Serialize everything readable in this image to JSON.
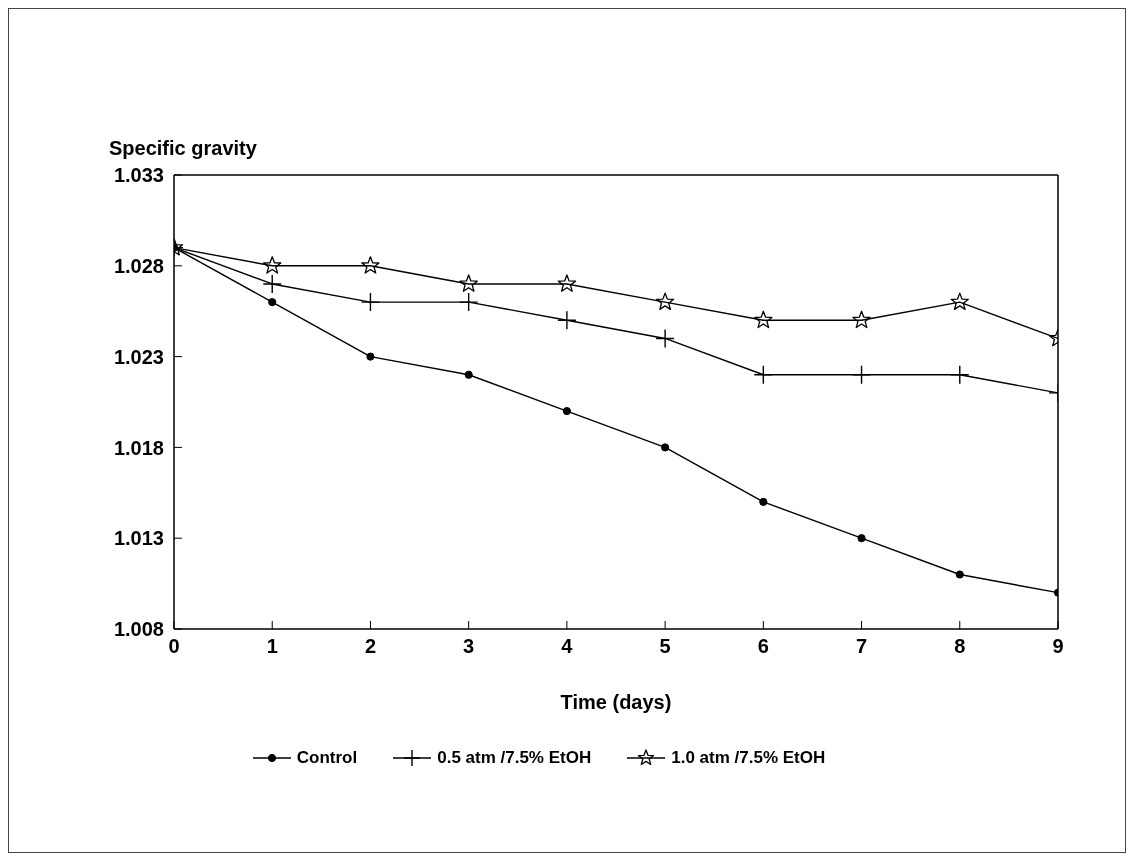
{
  "chart_data": {
    "type": "line",
    "xlabel": "Time (days)",
    "ylabel": "Specific gravity",
    "x": [
      0,
      1,
      2,
      3,
      4,
      5,
      6,
      7,
      8,
      9
    ],
    "series": [
      {
        "name": "Control",
        "color": "#000000",
        "marker": "circle",
        "values": [
          1.029,
          1.026,
          1.023,
          1.022,
          1.02,
          1.018,
          1.015,
          1.013,
          1.011,
          1.01
        ]
      },
      {
        "name": "0.5 atm /7.5% EtOH",
        "color": "#000000",
        "marker": "cross",
        "values": [
          1.029,
          1.027,
          1.026,
          1.026,
          1.025,
          1.024,
          1.022,
          1.022,
          1.022,
          1.021
        ]
      },
      {
        "name": "1.0 atm /7.5% EtOH",
        "color": "#000000",
        "marker": "star",
        "values": [
          1.029,
          1.028,
          1.028,
          1.027,
          1.027,
          1.026,
          1.025,
          1.025,
          1.026,
          1.024
        ]
      }
    ],
    "xlim": [
      0,
      9
    ],
    "xticks": [
      0,
      1,
      2,
      3,
      4,
      5,
      6,
      7,
      8,
      9
    ],
    "ylim": [
      1.008,
      1.033
    ],
    "yticks": [
      1.008,
      1.013,
      1.018,
      1.023,
      1.028,
      1.033
    ],
    "grid": false,
    "legend": "bottom",
    "line_style": "solid"
  }
}
